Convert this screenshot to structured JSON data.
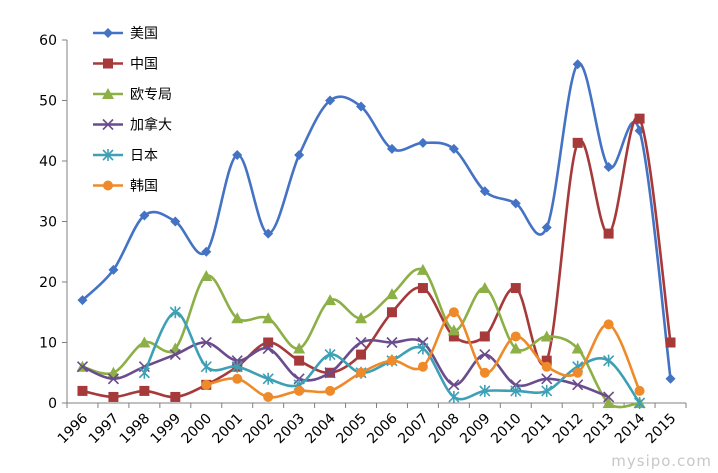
{
  "chart_data": {
    "type": "line",
    "categories": [
      "1996",
      "1997",
      "1998",
      "1999",
      "2000",
      "2001",
      "2002",
      "2003",
      "2004",
      "2005",
      "2006",
      "2007",
      "2008",
      "2009",
      "2010",
      "2011",
      "2012",
      "2013",
      "2014",
      "2015"
    ],
    "ylim": [
      0,
      60
    ],
    "yticks": [
      0,
      10,
      20,
      30,
      40,
      50,
      60
    ],
    "grid": false,
    "legend": "top-left",
    "series": [
      {
        "name": "美国",
        "color": "#4472C4",
        "marker": "diamond",
        "values": [
          17,
          22,
          31,
          30,
          25,
          41,
          28,
          41,
          50,
          49,
          42,
          43,
          42,
          35,
          33,
          29,
          56,
          39,
          45,
          4
        ]
      },
      {
        "name": "中国",
        "color": "#A6393A",
        "marker": "square",
        "values": [
          2,
          1,
          2,
          1,
          3,
          6,
          10,
          7,
          5,
          8,
          15,
          19,
          11,
          11,
          19,
          7,
          43,
          28,
          47,
          10
        ]
      },
      {
        "name": "欧专局",
        "color": "#8CAF46",
        "marker": "triangle",
        "values": [
          6,
          5,
          10,
          9,
          21,
          14,
          14,
          9,
          17,
          14,
          18,
          22,
          12,
          19,
          9,
          11,
          9,
          0,
          0,
          null
        ]
      },
      {
        "name": "加拿大",
        "color": "#6A4C8C",
        "marker": "x",
        "values": [
          6,
          4,
          6,
          8,
          10,
          7,
          9,
          4,
          5,
          10,
          10,
          10,
          3,
          8,
          3,
          4,
          3,
          1,
          null,
          null
        ]
      },
      {
        "name": "日本",
        "color": "#3DA0B5",
        "marker": "star",
        "values": [
          null,
          null,
          5,
          15,
          6,
          6,
          4,
          3,
          8,
          5,
          7,
          9,
          1,
          2,
          2,
          2,
          6,
          7,
          0,
          null
        ]
      },
      {
        "name": "韩国",
        "color": "#EE8A2A",
        "marker": "circle",
        "values": [
          null,
          null,
          null,
          null,
          3,
          4,
          1,
          2,
          2,
          5,
          7,
          6,
          15,
          5,
          11,
          6,
          5,
          13,
          2,
          null
        ]
      }
    ]
  },
  "watermark": "mysipo.com"
}
